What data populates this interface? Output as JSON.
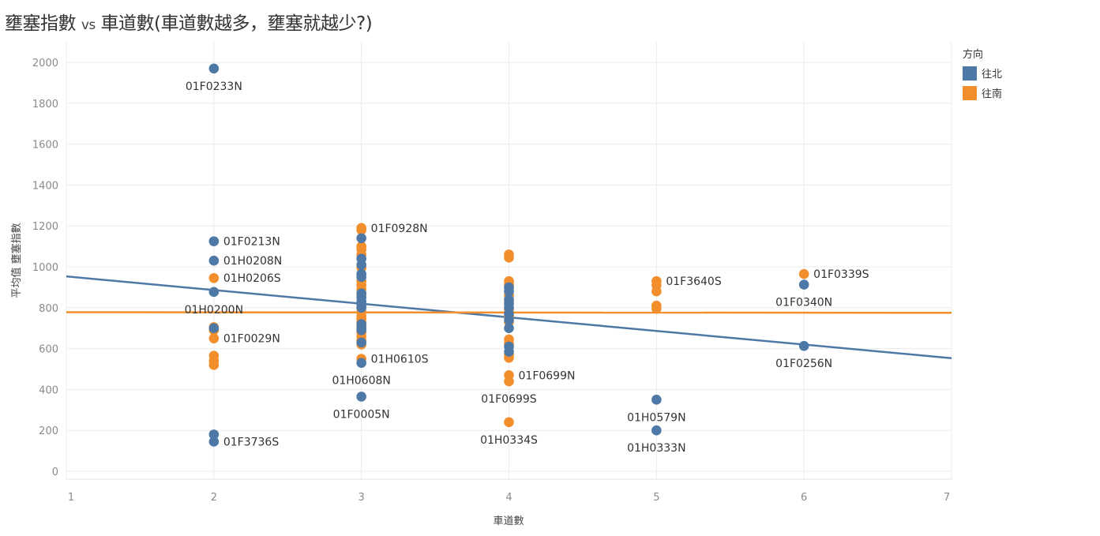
{
  "title": {
    "main": "壅塞指數",
    "vs": "vs",
    "rest": "車道數(車道數越多，壅塞就越少?)"
  },
  "legend": {
    "title": "方向",
    "items": [
      {
        "label": "往北",
        "color": "#4e79a7"
      },
      {
        "label": "往南",
        "color": "#f28e2b"
      }
    ]
  },
  "chart_data": {
    "type": "scatter",
    "xlabel": "車道數",
    "ylabel": "平均值 壅塞指數",
    "xlim": [
      1,
      7
    ],
    "ylim": [
      0,
      2000
    ],
    "x_ticks": [
      1,
      2,
      3,
      4,
      5,
      6,
      7
    ],
    "y_ticks": [
      0,
      200,
      400,
      600,
      800,
      1000,
      1200,
      1400,
      1600,
      1800,
      2000
    ],
    "grid": true,
    "legend_position": "top-right",
    "series": [
      {
        "name": "往北",
        "color": "#4e79a7",
        "points": [
          {
            "x": 2,
            "y": 1970,
            "label": "01F0233N"
          },
          {
            "x": 2,
            "y": 1125,
            "label": "01F0213N"
          },
          {
            "x": 2,
            "y": 1030,
            "label": "01H0208N"
          },
          {
            "x": 2,
            "y": 877,
            "label": "01H0200N"
          },
          {
            "x": 2,
            "y": 700
          },
          {
            "x": 2,
            "y": 180
          },
          {
            "x": 2,
            "y": 145,
            "label": "01F3736S"
          },
          {
            "x": 3,
            "y": 1140
          },
          {
            "x": 3,
            "y": 1040
          },
          {
            "x": 3,
            "y": 1010
          },
          {
            "x": 3,
            "y": 965
          },
          {
            "x": 3,
            "y": 950
          },
          {
            "x": 3,
            "y": 870
          },
          {
            "x": 3,
            "y": 850
          },
          {
            "x": 3,
            "y": 830
          },
          {
            "x": 3,
            "y": 815
          },
          {
            "x": 3,
            "y": 800
          },
          {
            "x": 3,
            "y": 720
          },
          {
            "x": 3,
            "y": 700
          },
          {
            "x": 3,
            "y": 690
          },
          {
            "x": 3,
            "y": 630
          },
          {
            "x": 3,
            "y": 530,
            "label": "01H0608N"
          },
          {
            "x": 3,
            "y": 365,
            "label": "01F0005N"
          },
          {
            "x": 4,
            "y": 900
          },
          {
            "x": 4,
            "y": 880
          },
          {
            "x": 4,
            "y": 840
          },
          {
            "x": 4,
            "y": 820
          },
          {
            "x": 4,
            "y": 800
          },
          {
            "x": 4,
            "y": 770
          },
          {
            "x": 4,
            "y": 740
          },
          {
            "x": 4,
            "y": 700
          },
          {
            "x": 4,
            "y": 610
          },
          {
            "x": 4,
            "y": 585
          },
          {
            "x": 5,
            "y": 350,
            "label": "01H0579N"
          },
          {
            "x": 5,
            "y": 200,
            "label": "01H0333N"
          },
          {
            "x": 6,
            "y": 913,
            "label": "01F0340N"
          },
          {
            "x": 6,
            "y": 613,
            "label": "01F0256N"
          }
        ],
        "trend": {
          "x": [
            1,
            7
          ],
          "y": [
            953,
            553
          ]
        }
      },
      {
        "name": "往南",
        "color": "#f28e2b",
        "points": [
          {
            "x": 2,
            "y": 945,
            "label": "01H0206S"
          },
          {
            "x": 2,
            "y": 705
          },
          {
            "x": 2,
            "y": 690
          },
          {
            "x": 2,
            "y": 650,
            "label": "01F0029N"
          },
          {
            "x": 2,
            "y": 565
          },
          {
            "x": 2,
            "y": 540
          },
          {
            "x": 2,
            "y": 520
          },
          {
            "x": 3,
            "y": 1190,
            "label": "01F0928N"
          },
          {
            "x": 3,
            "y": 1180
          },
          {
            "x": 3,
            "y": 1100
          },
          {
            "x": 3,
            "y": 1085
          },
          {
            "x": 3,
            "y": 1060
          },
          {
            "x": 3,
            "y": 995
          },
          {
            "x": 3,
            "y": 930
          },
          {
            "x": 3,
            "y": 910
          },
          {
            "x": 3,
            "y": 890
          },
          {
            "x": 3,
            "y": 865
          },
          {
            "x": 3,
            "y": 800
          },
          {
            "x": 3,
            "y": 780
          },
          {
            "x": 3,
            "y": 760
          },
          {
            "x": 3,
            "y": 745
          },
          {
            "x": 3,
            "y": 730
          },
          {
            "x": 3,
            "y": 710
          },
          {
            "x": 3,
            "y": 680
          },
          {
            "x": 3,
            "y": 660
          },
          {
            "x": 3,
            "y": 640
          },
          {
            "x": 3,
            "y": 620
          },
          {
            "x": 3,
            "y": 550,
            "label": "01H0610S"
          },
          {
            "x": 4,
            "y": 1060
          },
          {
            "x": 4,
            "y": 1045
          },
          {
            "x": 4,
            "y": 930
          },
          {
            "x": 4,
            "y": 915
          },
          {
            "x": 4,
            "y": 900
          },
          {
            "x": 4,
            "y": 860
          },
          {
            "x": 4,
            "y": 830
          },
          {
            "x": 4,
            "y": 790
          },
          {
            "x": 4,
            "y": 760
          },
          {
            "x": 4,
            "y": 730
          },
          {
            "x": 4,
            "y": 645
          },
          {
            "x": 4,
            "y": 625
          },
          {
            "x": 4,
            "y": 570
          },
          {
            "x": 4,
            "y": 555
          },
          {
            "x": 4,
            "y": 470,
            "label": "01F0699N"
          },
          {
            "x": 4,
            "y": 440,
            "label": "01F0699S"
          },
          {
            "x": 4,
            "y": 240,
            "label": "01H0334S"
          },
          {
            "x": 5,
            "y": 930,
            "label": "01F3640S"
          },
          {
            "x": 5,
            "y": 910
          },
          {
            "x": 5,
            "y": 880
          },
          {
            "x": 5,
            "y": 810
          },
          {
            "x": 5,
            "y": 795
          },
          {
            "x": 6,
            "y": 965,
            "label": "01F0339S"
          }
        ],
        "trend": {
          "x": [
            1,
            7
          ],
          "y": [
            778,
            775
          ]
        }
      }
    ]
  }
}
